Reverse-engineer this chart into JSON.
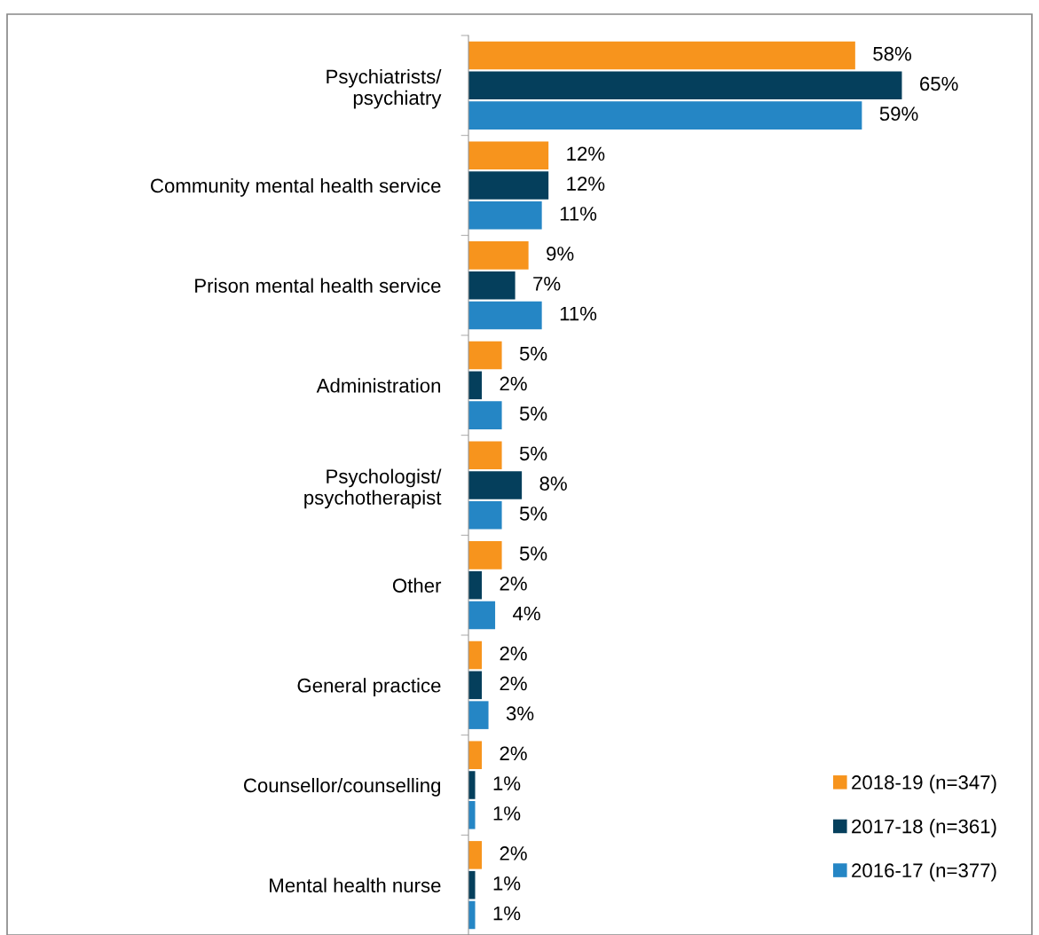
{
  "chart_data": {
    "type": "bar",
    "orientation": "horizontal",
    "legend": "bottom right",
    "grid": false,
    "categories": [
      "Psychiatrists/\npsychiatry",
      "Community mental health service",
      "Prison mental health service",
      "Administration",
      "Psychologist/\npsychotherapist",
      "Other",
      "General practice",
      "Counsellor/counselling",
      "Mental health nurse"
    ],
    "series": [
      {
        "name": "2018-19 (n=347)",
        "color": "#f7941d",
        "values": [
          58,
          12,
          9,
          5,
          5,
          5,
          2,
          2,
          2
        ],
        "value_labels": [
          "58%",
          "12%",
          "9%",
          "5%",
          "5%",
          "5%",
          "2%",
          "2%",
          "2%"
        ]
      },
      {
        "name": "2017-18 (n=361)",
        "color": "#053f5c",
        "values": [
          65,
          12,
          7,
          2,
          8,
          2,
          2,
          1,
          1
        ],
        "value_labels": [
          "65%",
          "12%",
          "7%",
          "2%",
          "8%",
          "2%",
          "2%",
          "1%",
          "1%"
        ]
      },
      {
        "name": "2016-17 (n=377)",
        "color": "#2586c5",
        "values": [
          59,
          11,
          11,
          5,
          5,
          4,
          3,
          1,
          1
        ],
        "value_labels": [
          "59%",
          "11%",
          "11%",
          "5%",
          "5%",
          "4%",
          "3%",
          "1%",
          "1%"
        ]
      }
    ]
  }
}
